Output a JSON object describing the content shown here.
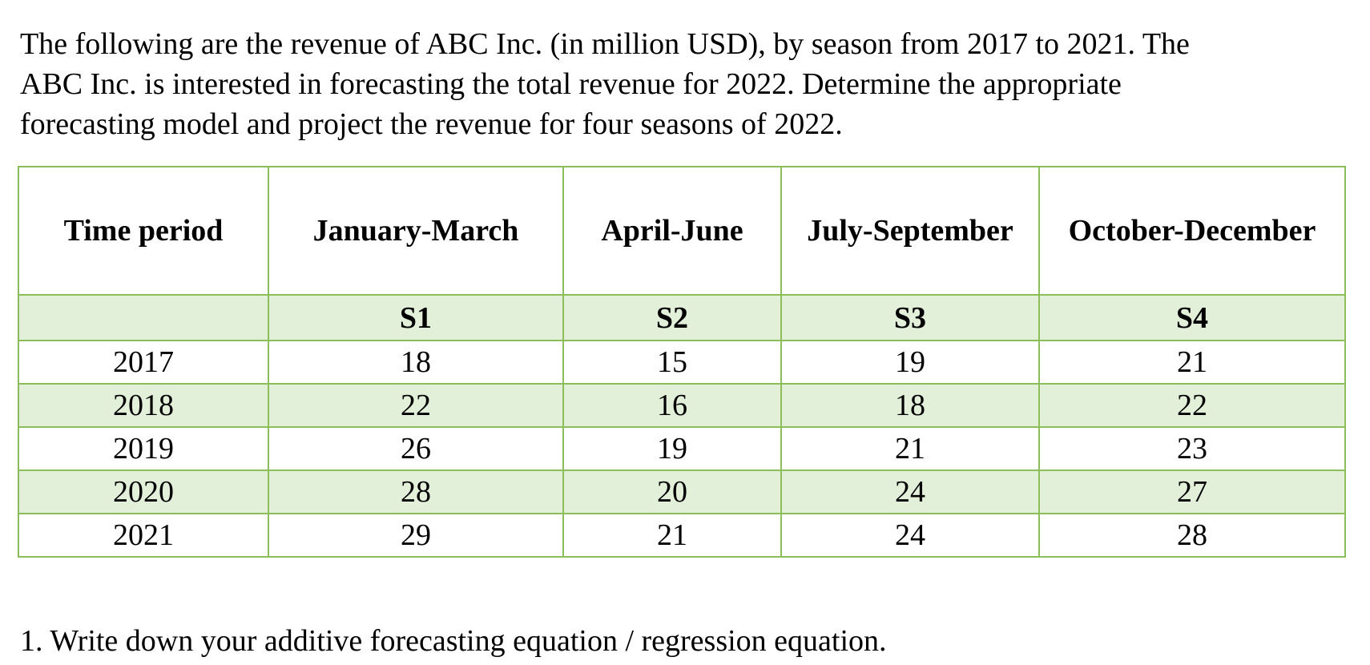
{
  "intro_lines": [
    "The following are the revenue of ABC Inc. (in million USD), by season from 2017 to 2021. The",
    "ABC Inc. is interested in forecasting the total revenue for 2022. Determine the appropriate",
    "forecasting model and project the revenue for four seasons of 2022."
  ],
  "table": {
    "headers": [
      "Time period",
      "January-March",
      "April-June",
      "July-September",
      "October-December"
    ],
    "season_codes": [
      "",
      "S1",
      "S2",
      "S3",
      "S4"
    ],
    "rows": [
      {
        "year": "2017",
        "values": [
          "18",
          "15",
          "19",
          "21"
        ]
      },
      {
        "year": "2018",
        "values": [
          "22",
          "16",
          "18",
          "22"
        ]
      },
      {
        "year": "2019",
        "values": [
          "26",
          "19",
          "21",
          "23"
        ]
      },
      {
        "year": "2020",
        "values": [
          "28",
          "20",
          "24",
          "27"
        ]
      },
      {
        "year": "2021",
        "values": [
          "29",
          "21",
          "24",
          "28"
        ]
      }
    ]
  },
  "question": "1. Write down your additive forecasting equation / regression equation."
}
